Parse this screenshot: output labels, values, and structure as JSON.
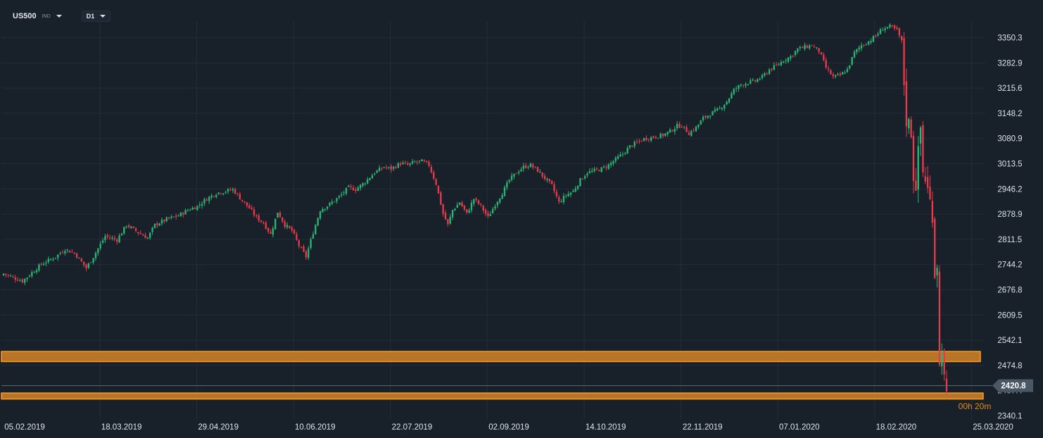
{
  "toolbar": {
    "symbol": "US500",
    "symbol_type": "IND",
    "timeframe": "D1"
  },
  "colors": {
    "background": "#18202a",
    "grid": "#232d38",
    "up": "#2bb673",
    "down": "#e83a4b",
    "zone_fill": "#c07a2a",
    "zone_border": "#ff9a1f",
    "last_price_line": "#5d6b7a",
    "axis_text": "#dfe3e8",
    "countdown": "#e08a1e"
  },
  "chart_data": {
    "type": "candlestick",
    "symbol": "US500",
    "timeframe": "D1",
    "grid": true,
    "x_tick_labels": [
      "05.02.2019",
      "18.03.2019",
      "29.04.2019",
      "10.06.2019",
      "22.07.2019",
      "02.09.2019",
      "14.10.2019",
      "22.11.2019",
      "07.01.2020",
      "18.02.2020",
      "25.03.2020"
    ],
    "y_tick_labels": [
      "3350.3",
      "3282.9",
      "3215.6",
      "3148.2",
      "3080.9",
      "3013.5",
      "2946.2",
      "2878.9",
      "2811.5",
      "2744.2",
      "2676.8",
      "2609.5",
      "2542.1",
      "2474.8",
      "2340.1"
    ],
    "ylim": [
      2325,
      3400
    ],
    "last_price": "2420.8",
    "last_price_value": 2420.8,
    "countdown": "00h 20m",
    "overlapped_axis_label": "2407.4",
    "zones": [
      {
        "low": 2485,
        "high": 2512
      },
      {
        "low": 2385,
        "high": 2401
      }
    ],
    "close_path": [
      [
        0,
        2720
      ],
      [
        8,
        2700
      ],
      [
        16,
        2745
      ],
      [
        22,
        2765
      ],
      [
        26,
        2785
      ],
      [
        30,
        2775
      ],
      [
        35,
        2735
      ],
      [
        38,
        2765
      ],
      [
        43,
        2820
      ],
      [
        48,
        2810
      ],
      [
        52,
        2850
      ],
      [
        57,
        2830
      ],
      [
        61,
        2815
      ],
      [
        64,
        2850
      ],
      [
        69,
        2865
      ],
      [
        74,
        2875
      ],
      [
        78,
        2890
      ],
      [
        82,
        2900
      ],
      [
        86,
        2920
      ],
      [
        90,
        2935
      ],
      [
        94,
        2940
      ],
      [
        97,
        2945
      ],
      [
        101,
        2915
      ],
      [
        104,
        2895
      ],
      [
        107,
        2870
      ],
      [
        110,
        2855
      ],
      [
        113,
        2825
      ],
      [
        116,
        2885
      ],
      [
        119,
        2850
      ],
      [
        122,
        2835
      ],
      [
        125,
        2795
      ],
      [
        128,
        2765
      ],
      [
        131,
        2830
      ],
      [
        134,
        2890
      ],
      [
        138,
        2905
      ],
      [
        142,
        2925
      ],
      [
        146,
        2950
      ],
      [
        149,
        2945
      ],
      [
        153,
        2965
      ],
      [
        157,
        2990
      ],
      [
        161,
        3005
      ],
      [
        164,
        3000
      ],
      [
        168,
        3015
      ],
      [
        171,
        3010
      ],
      [
        174,
        3018
      ],
      [
        177,
        3020
      ],
      [
        180,
        3010
      ],
      [
        183,
        2960
      ],
      [
        186,
        2880
      ],
      [
        188,
        2850
      ],
      [
        190,
        2890
      ],
      [
        193,
        2910
      ],
      [
        196,
        2880
      ],
      [
        199,
        2920
      ],
      [
        202,
        2900
      ],
      [
        205,
        2870
      ],
      [
        208,
        2905
      ],
      [
        211,
        2935
      ],
      [
        214,
        2970
      ],
      [
        217,
        2990
      ],
      [
        220,
        3005
      ],
      [
        223,
        3010
      ],
      [
        226,
        2995
      ],
      [
        229,
        2975
      ],
      [
        232,
        2955
      ],
      [
        235,
        2910
      ],
      [
        238,
        2930
      ],
      [
        241,
        2940
      ],
      [
        244,
        2970
      ],
      [
        247,
        2990
      ],
      [
        250,
        2995
      ],
      [
        253,
        3000
      ],
      [
        256,
        3010
      ],
      [
        259,
        3025
      ],
      [
        262,
        3040
      ],
      [
        265,
        3060
      ],
      [
        268,
        3070
      ],
      [
        271,
        3080
      ],
      [
        275,
        3085
      ],
      [
        279,
        3090
      ],
      [
        282,
        3100
      ],
      [
        285,
        3115
      ],
      [
        287,
        3115
      ],
      [
        290,
        3095
      ],
      [
        293,
        3110
      ],
      [
        296,
        3135
      ],
      [
        300,
        3150
      ],
      [
        303,
        3160
      ],
      [
        306,
        3180
      ],
      [
        309,
        3210
      ],
      [
        312,
        3225
      ],
      [
        315,
        3230
      ],
      [
        318,
        3235
      ],
      [
        321,
        3245
      ],
      [
        324,
        3265
      ],
      [
        327,
        3275
      ],
      [
        330,
        3290
      ],
      [
        333,
        3300
      ],
      [
        336,
        3320
      ],
      [
        339,
        3325
      ],
      [
        342,
        3330
      ],
      [
        345,
        3315
      ],
      [
        348,
        3270
      ],
      [
        351,
        3245
      ],
      [
        354,
        3250
      ],
      [
        357,
        3265
      ],
      [
        360,
        3310
      ],
      [
        363,
        3330
      ],
      [
        366,
        3340
      ],
      [
        369,
        3355
      ],
      [
        372,
        3375
      ],
      [
        375,
        3380
      ],
      [
        378,
        3370
      ],
      [
        380,
        3340
      ],
      [
        381,
        3230
      ],
      [
        382,
        3130
      ],
      [
        383,
        3120
      ],
      [
        384,
        3100
      ],
      [
        385,
        2980
      ],
      [
        386,
        2960
      ],
      [
        387,
        3040
      ],
      [
        388,
        3110
      ],
      [
        389,
        2990
      ],
      [
        390,
        2975
      ],
      [
        393,
        2880
      ],
      [
        394,
        2720
      ],
      [
        395,
        2750
      ],
      [
        396,
        2470
      ],
      [
        397,
        2525
      ],
      [
        398,
        2435
      ],
      [
        399,
        2385
      ]
    ]
  }
}
